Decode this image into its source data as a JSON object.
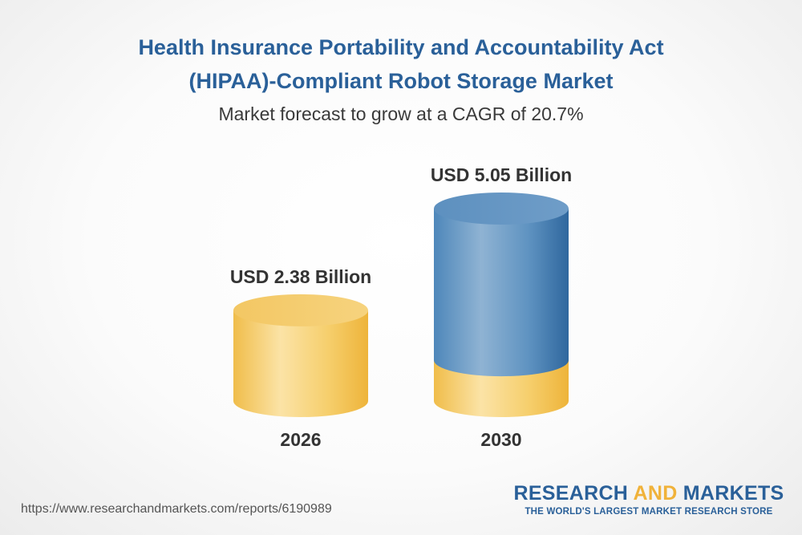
{
  "header": {
    "title_line1": "Health Insurance Portability and Accountability Act",
    "title_line2": "(HIPAA)-Compliant Robot Storage Market",
    "subtitle": "Market forecast to grow at a CAGR of 20.7%"
  },
  "chart_data": {
    "type": "bar",
    "categories": [
      "2026",
      "2030"
    ],
    "values": [
      2.38,
      5.05
    ],
    "value_labels": [
      "USD 2.38 Billion",
      "USD 5.05 Billion"
    ],
    "unit": "USD Billion",
    "colors": {
      "base": "#f2c356",
      "growth": "#3f79ad"
    }
  },
  "footer": {
    "source_url": "https://www.researchandmarkets.com/reports/6190989",
    "brand_part1": "RESEARCH ",
    "brand_accent": "AND",
    "brand_part2": " MARKETS",
    "brand_tagline": "THE WORLD'S LARGEST MARKET RESEARCH STORE"
  }
}
